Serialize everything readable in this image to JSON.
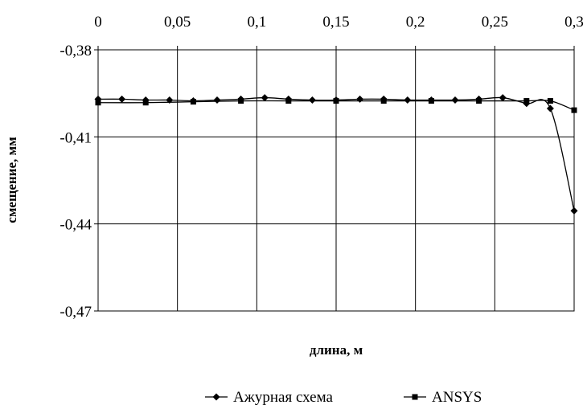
{
  "chart_data": {
    "type": "line",
    "title": "",
    "xlabel": "длина, м",
    "ylabel": "смещение, мм",
    "xlim": [
      0,
      0.3
    ],
    "ylim": [
      -0.47,
      -0.38
    ],
    "x_ticks": [
      0,
      0.05,
      0.1,
      0.15,
      0.2,
      0.25,
      0.3
    ],
    "y_ticks": [
      -0.38,
      -0.41,
      -0.44,
      -0.47
    ],
    "x_tick_labels": [
      "0",
      "0,05",
      "0,1",
      "0,15",
      "0,2",
      "0,25",
      "0,3"
    ],
    "y_tick_labels": [
      "-0,38",
      "-0,41",
      "-0,44",
      "-0,47"
    ],
    "x_axis_position": "top",
    "grid": true,
    "legend_position": "bottom-center",
    "series": [
      {
        "name": "Ажурная схема",
        "marker": "diamond",
        "color": "#000000",
        "x": [
          0,
          0.015,
          0.03,
          0.045,
          0.06,
          0.075,
          0.09,
          0.105,
          0.12,
          0.135,
          0.15,
          0.165,
          0.18,
          0.195,
          0.21,
          0.225,
          0.24,
          0.255,
          0.27,
          0.285,
          0.3
        ],
        "y": [
          -0.397,
          -0.397,
          -0.3973,
          -0.3973,
          -0.3976,
          -0.3973,
          -0.397,
          -0.3965,
          -0.397,
          -0.3973,
          -0.3973,
          -0.397,
          -0.397,
          -0.3973,
          -0.3973,
          -0.3973,
          -0.397,
          -0.3965,
          -0.3985,
          -0.4002,
          -0.4355
        ]
      },
      {
        "name": "ANSYS",
        "marker": "square",
        "color": "#000000",
        "x": [
          0,
          0.03,
          0.06,
          0.09,
          0.12,
          0.15,
          0.18,
          0.21,
          0.24,
          0.27,
          0.285,
          0.3
        ],
        "y": [
          -0.3982,
          -0.3982,
          -0.3979,
          -0.3976,
          -0.3976,
          -0.3976,
          -0.3976,
          -0.3976,
          -0.3976,
          -0.3976,
          -0.3976,
          -0.4008
        ]
      }
    ]
  }
}
